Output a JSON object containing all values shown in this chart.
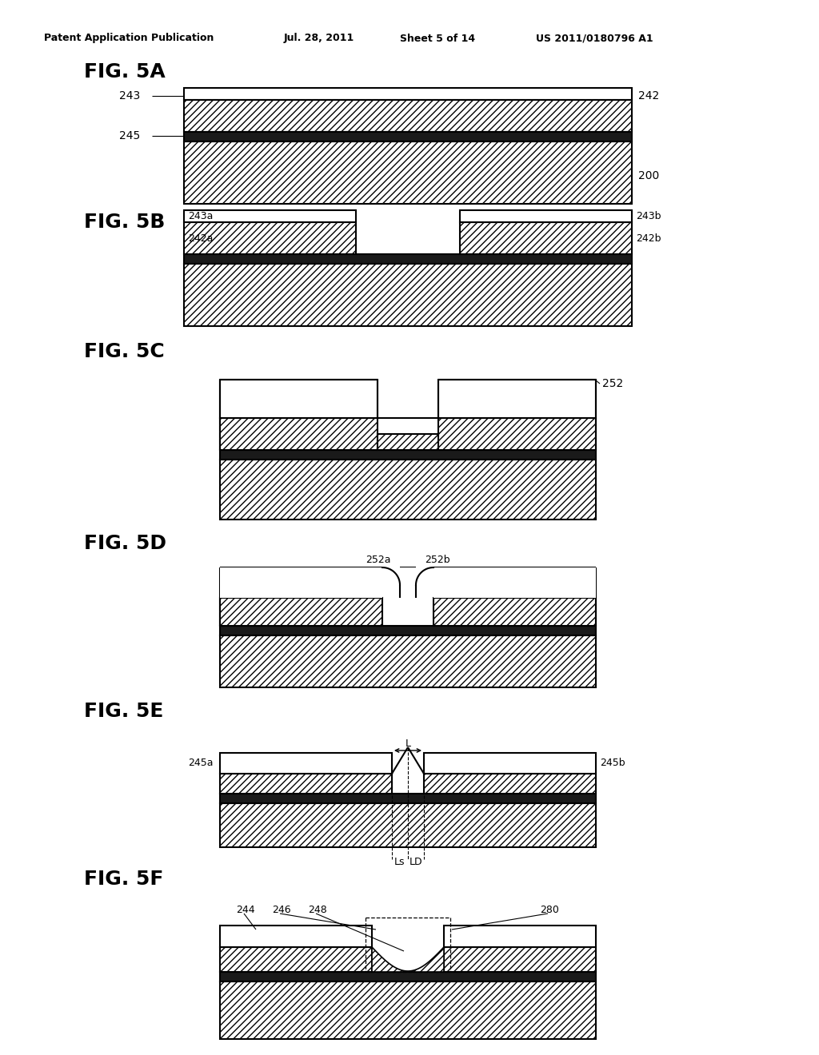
{
  "bg_color": "#ffffff",
  "header_text": "Patent Application Publication",
  "header_date": "Jul. 28, 2011",
  "header_sheet": "Sheet 5 of 14",
  "header_patent": "US 2011/0180796 A1"
}
